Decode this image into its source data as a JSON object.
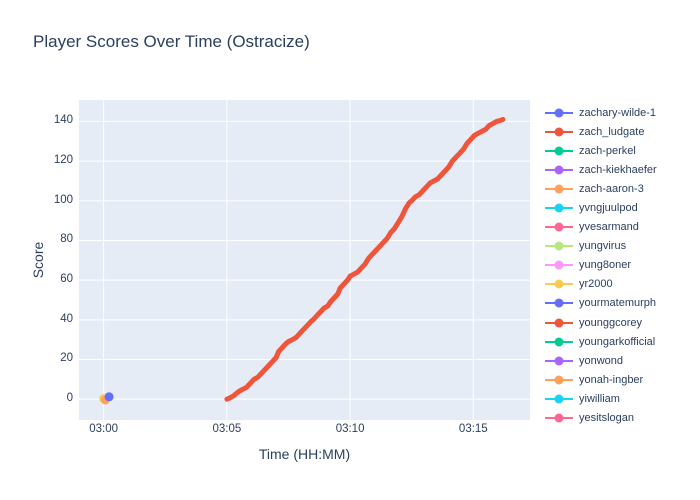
{
  "title": "Player Scores Over Time (Ostracize)",
  "colors": {
    "text": "#2a3f5f",
    "plot_background": "#e5ecf6",
    "gridline": "#ffffff",
    "paper": "#ffffff"
  },
  "chart_data": {
    "type": "line",
    "title": "Player Scores Over Time (Ostracize)",
    "xlabel": "Time (HH:MM)",
    "ylabel": "Score",
    "grid": true,
    "legend_position": "right",
    "x_ticks": [
      {
        "minute": 0,
        "label": "03:00"
      },
      {
        "minute": 5,
        "label": "03:05"
      },
      {
        "minute": 10,
        "label": "03:10"
      },
      {
        "minute": 15,
        "label": "03:15"
      }
    ],
    "y_ticks": [
      0,
      20,
      40,
      60,
      80,
      100,
      120,
      140
    ],
    "xlim_minutes": [
      -1.0,
      17.3
    ],
    "ylim": [
      -10.5,
      150.8
    ],
    "series": [
      {
        "name": "yr2000",
        "type": "scatter",
        "color": "#FECB52",
        "marker_radius": 4.5,
        "points": [
          [
            0.0,
            0.3
          ]
        ]
      },
      {
        "name": "zach-aaron-3",
        "type": "scatter",
        "color": "#FFA15A",
        "marker_radius": 4.5,
        "points": [
          [
            0.07,
            -0.4
          ]
        ]
      },
      {
        "name": "zachary-wilde-1",
        "type": "scatter",
        "color": "#636EFA",
        "marker_radius": 4.5,
        "points": [
          [
            0.22,
            1.2
          ]
        ]
      },
      {
        "name": "zach_ludgate",
        "type": "line",
        "color": "#EF553B",
        "stroke_width": 5,
        "points": [
          [
            5.0,
            0
          ],
          [
            5.1,
            0.5
          ],
          [
            5.25,
            1.5
          ],
          [
            5.4,
            3
          ],
          [
            5.5,
            4
          ],
          [
            5.65,
            5
          ],
          [
            5.8,
            6
          ],
          [
            5.95,
            8
          ],
          [
            6.1,
            10
          ],
          [
            6.25,
            11
          ],
          [
            6.4,
            13
          ],
          [
            6.55,
            15
          ],
          [
            6.7,
            17
          ],
          [
            6.85,
            19
          ],
          [
            7.0,
            21
          ],
          [
            7.1,
            24
          ],
          [
            7.25,
            26
          ],
          [
            7.4,
            28
          ],
          [
            7.5,
            29
          ],
          [
            7.65,
            30
          ],
          [
            7.8,
            31
          ],
          [
            7.95,
            33
          ],
          [
            8.1,
            35
          ],
          [
            8.25,
            37
          ],
          [
            8.4,
            39
          ],
          [
            8.5,
            40
          ],
          [
            8.65,
            42
          ],
          [
            8.8,
            44
          ],
          [
            8.95,
            46
          ],
          [
            9.1,
            47
          ],
          [
            9.2,
            49
          ],
          [
            9.35,
            51
          ],
          [
            9.5,
            53
          ],
          [
            9.6,
            56
          ],
          [
            9.75,
            58
          ],
          [
            9.9,
            60
          ],
          [
            10.0,
            62
          ],
          [
            10.15,
            63
          ],
          [
            10.3,
            64
          ],
          [
            10.45,
            66
          ],
          [
            10.6,
            68
          ],
          [
            10.75,
            71
          ],
          [
            10.9,
            73
          ],
          [
            11.05,
            75
          ],
          [
            11.2,
            77
          ],
          [
            11.35,
            79
          ],
          [
            11.5,
            81
          ],
          [
            11.65,
            84
          ],
          [
            11.8,
            86
          ],
          [
            11.95,
            89
          ],
          [
            12.1,
            92
          ],
          [
            12.25,
            96
          ],
          [
            12.4,
            99
          ],
          [
            12.5,
            100
          ],
          [
            12.65,
            102
          ],
          [
            12.8,
            103
          ],
          [
            12.95,
            105
          ],
          [
            13.1,
            107
          ],
          [
            13.25,
            109
          ],
          [
            13.4,
            110
          ],
          [
            13.55,
            111
          ],
          [
            13.7,
            113
          ],
          [
            13.85,
            115
          ],
          [
            14.0,
            117
          ],
          [
            14.15,
            120
          ],
          [
            14.3,
            122
          ],
          [
            14.45,
            124
          ],
          [
            14.6,
            126
          ],
          [
            14.75,
            129
          ],
          [
            14.9,
            131
          ],
          [
            15.05,
            133
          ],
          [
            15.2,
            134
          ],
          [
            15.35,
            135
          ],
          [
            15.5,
            136
          ],
          [
            15.65,
            138
          ],
          [
            15.8,
            139
          ],
          [
            15.95,
            140
          ],
          [
            16.1,
            140.5
          ],
          [
            16.2,
            141
          ]
        ]
      }
    ],
    "legend": [
      {
        "label": "zachary-wilde-1",
        "color": "#636EFA"
      },
      {
        "label": "zach_ludgate",
        "color": "#EF553B"
      },
      {
        "label": "zach-perkel",
        "color": "#00CC96"
      },
      {
        "label": "zach-kiekhaefer",
        "color": "#AB63FA"
      },
      {
        "label": "zach-aaron-3",
        "color": "#FFA15A"
      },
      {
        "label": "yvngjuulpod",
        "color": "#19D3F3"
      },
      {
        "label": "yvesarmand",
        "color": "#FF6692"
      },
      {
        "label": "yungvirus",
        "color": "#B6E880"
      },
      {
        "label": "yung8oner",
        "color": "#FF97FF"
      },
      {
        "label": "yr2000",
        "color": "#FECB52"
      },
      {
        "label": "yourmatemurph",
        "color": "#636EFA"
      },
      {
        "label": "younggcorey",
        "color": "#EF553B"
      },
      {
        "label": "youngarkofficial",
        "color": "#00CC96"
      },
      {
        "label": "yonwond",
        "color": "#AB63FA"
      },
      {
        "label": "yonah-ingber",
        "color": "#FFA15A"
      },
      {
        "label": "yiwilliam",
        "color": "#19D3F3"
      },
      {
        "label": "yesitslogan",
        "color": "#FF6692"
      }
    ]
  }
}
